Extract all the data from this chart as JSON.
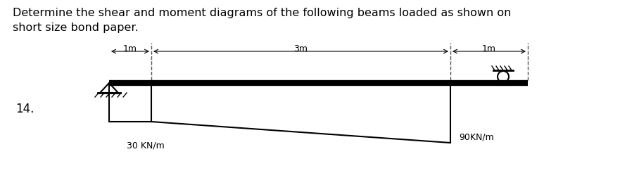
{
  "title_text": "Determine the shear and moment diagrams of the following beams loaded as shown on\nshort size bond paper.",
  "problem_number": "14.",
  "label_30": "30 KN/m",
  "label_90": "90KN/m",
  "label_1m_left": "1m",
  "label_3m": "3m",
  "label_1m_right": "1m",
  "background_color": "#ffffff",
  "beam_color": "#000000",
  "load_color": "#000000",
  "title_fontsize": 11.5,
  "fig_width": 8.81,
  "fig_height": 2.73,
  "dashed_line_color": "#555555"
}
